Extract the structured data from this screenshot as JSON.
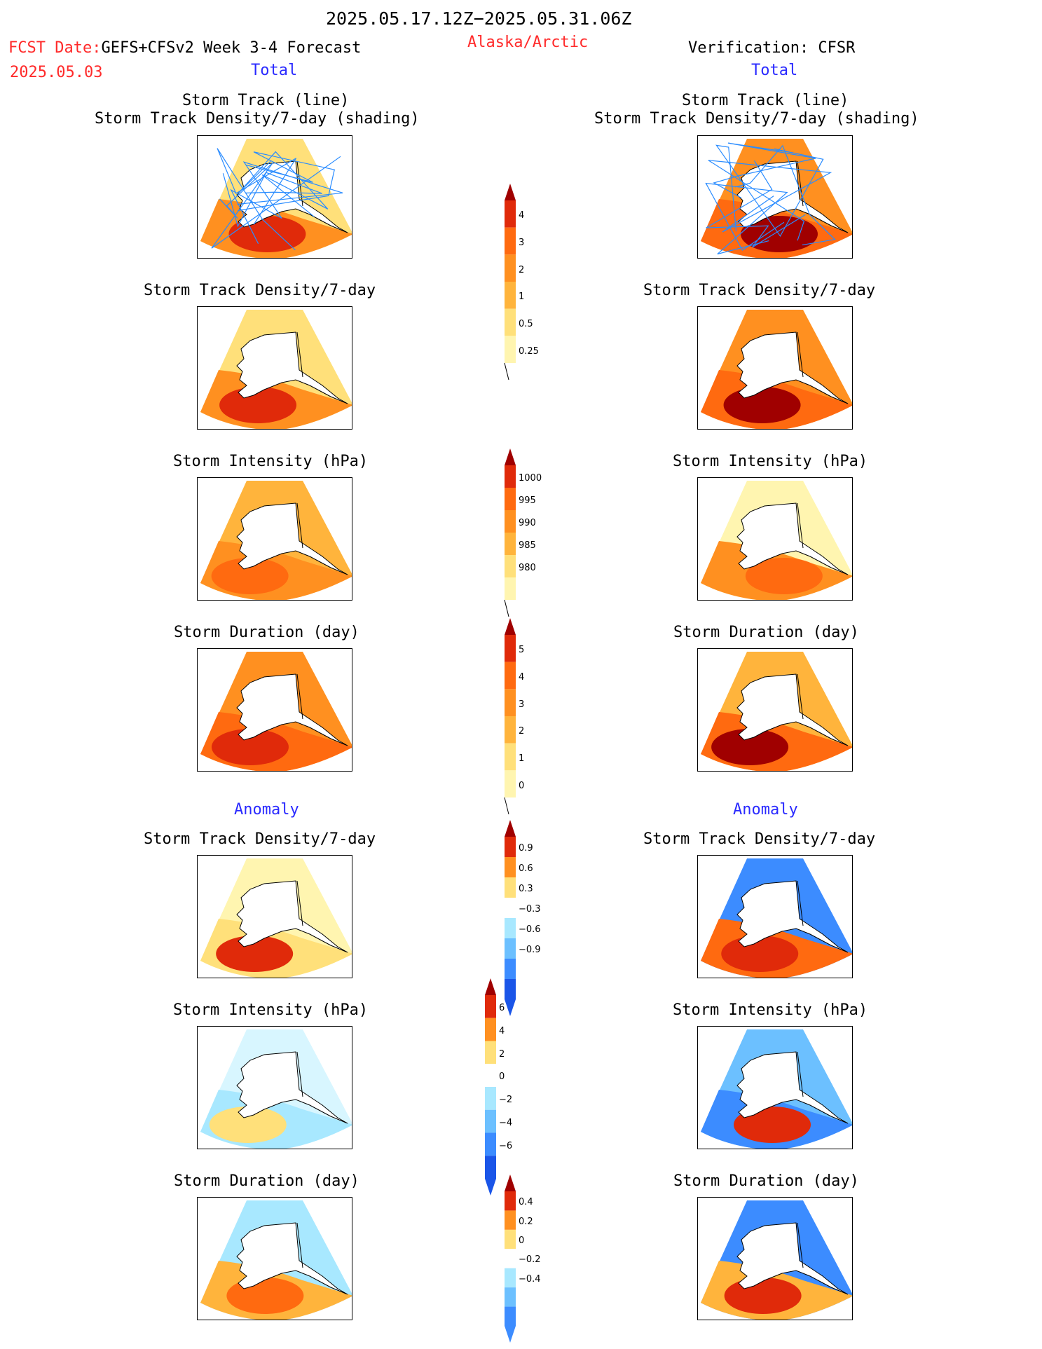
{
  "header": {
    "date_range": "2025.05.17.12Z−2025.05.31.06Z",
    "fcst_label": "FCST Date:",
    "fcst_model": "GEFS+CFSv2 Week 3-4 Forecast",
    "fcst_date": "2025.05.03",
    "region": "Alaska/Arctic",
    "verification": "Verification: CFSR",
    "left_total": "Total",
    "right_total": "Total",
    "left_anomaly": "Anomaly",
    "right_anomaly": "Anomaly"
  },
  "colors": {
    "title_red": "#ff2a2a",
    "title_blue": "#2a2aff",
    "warm": [
      "#fff5b0",
      "#ffe07a",
      "#ffb43c",
      "#ff9020",
      "#ff6a10",
      "#e02a0a",
      "#a00000"
    ],
    "cool": [
      "#d8f6ff",
      "#a8e8ff",
      "#6cc0ff",
      "#3c8cff",
      "#1a55e8"
    ],
    "track_line": "#2a8cff"
  },
  "panel_titles": {
    "track_line": "Storm Track (line)",
    "track_shading": "Storm Track Density/7-day (shading)",
    "density": "Storm Track Density/7-day",
    "intensity": "Storm Intensity (hPa)",
    "duration": "Storm Duration (day)"
  },
  "chart_data": [
    {
      "type": "heatmap",
      "id": "total-density-scale",
      "colorbar_ticks": [
        "4",
        "3",
        "2",
        "1",
        "0.5",
        "0.25"
      ]
    },
    {
      "type": "heatmap",
      "id": "total-intensity-scale",
      "colorbar_ticks": [
        "1000",
        "995",
        "990",
        "985",
        "980"
      ]
    },
    {
      "type": "heatmap",
      "id": "total-duration-scale",
      "colorbar_ticks": [
        "5",
        "4",
        "3",
        "2",
        "1",
        "0"
      ]
    },
    {
      "type": "heatmap",
      "id": "anom-density-scale",
      "colorbar_ticks": [
        "0.9",
        "0.6",
        "0.3",
        "−0.3",
        "−0.6",
        "−0.9"
      ]
    },
    {
      "type": "heatmap",
      "id": "anom-intensity-scale",
      "colorbar_ticks": [
        "6",
        "4",
        "2",
        "0",
        "−2",
        "−4",
        "−6"
      ]
    },
    {
      "type": "heatmap",
      "id": "anom-duration-scale",
      "colorbar_ticks": [
        "0.4",
        "0.2",
        "0",
        "−0.2",
        "−0.4"
      ]
    }
  ]
}
